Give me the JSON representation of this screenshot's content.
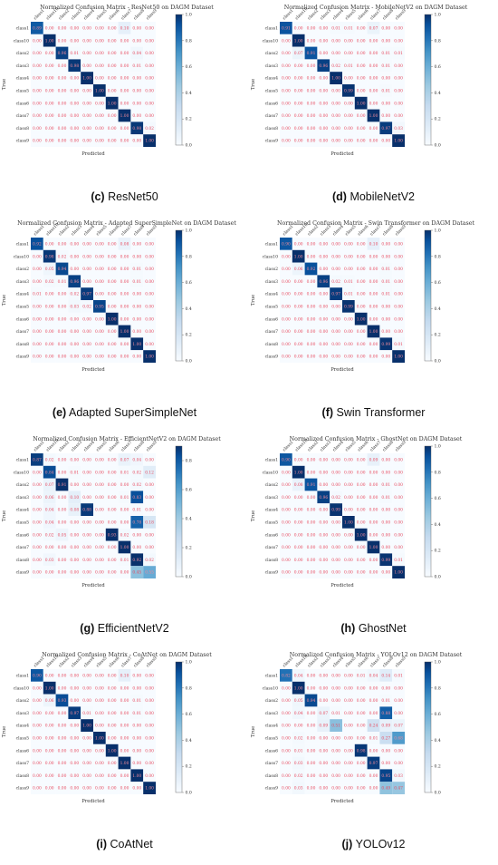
{
  "figure": {
    "class_labels": [
      "class1",
      "class10",
      "class2",
      "class3",
      "class4",
      "class5",
      "class6",
      "class7",
      "class8",
      "class9"
    ],
    "axis_true": "True",
    "axis_pred": "Predicted",
    "cbar_ticks": [
      "0.0",
      "0.2",
      "0.4",
      "0.6",
      "0.8",
      "1.0"
    ],
    "colors": {
      "low": "#f7fbff",
      "high": "#08306b",
      "text_light": "#e84a5f",
      "text_dark": "#f08a9a"
    }
  },
  "panels": [
    {
      "letter": "(c)",
      "caption": "ResNet50"
    },
    {
      "letter": "(d)",
      "caption": "MobileNetV2"
    },
    {
      "letter": "(e)",
      "caption": "Adapted SuperSimpleNet"
    },
    {
      "letter": "(f)",
      "caption": "Swin Transformer"
    },
    {
      "letter": "(g)",
      "caption": "EfficientNetV2"
    },
    {
      "letter": "(h)",
      "caption": "GhostNet"
    },
    {
      "letter": "(i)",
      "caption": "CoAtNet"
    },
    {
      "letter": "(j)",
      "caption": "YOLOv12"
    }
  ],
  "chart_data": [
    {
      "type": "heatmap",
      "title": "Normalized Confusion Matrix - ResNet50 on DAGM Dataset",
      "xlabel": "Predicted",
      "ylabel": "True",
      "vrange": [
        0,
        1.0
      ],
      "matrix": [
        [
          0.89,
          0.0,
          0.0,
          0.0,
          0.0,
          0.0,
          0.0,
          0.1,
          0.0,
          0.0
        ],
        [
          0.0,
          1.0,
          0.0,
          0.0,
          0.0,
          0.0,
          0.0,
          0.0,
          0.0,
          0.0
        ],
        [
          0.0,
          0.0,
          0.96,
          0.01,
          0.0,
          0.0,
          0.0,
          0.0,
          0.04,
          0.0
        ],
        [
          0.0,
          0.0,
          0.0,
          0.98,
          0.0,
          0.0,
          0.0,
          0.0,
          0.01,
          0.0
        ],
        [
          0.0,
          0.0,
          0.0,
          0.0,
          1.0,
          0.0,
          0.0,
          0.0,
          0.0,
          0.0
        ],
        [
          0.0,
          0.0,
          0.0,
          0.0,
          0.0,
          1.0,
          0.0,
          0.0,
          0.0,
          0.0
        ],
        [
          0.0,
          0.0,
          0.0,
          0.0,
          0.0,
          0.0,
          1.0,
          0.0,
          0.0,
          0.0
        ],
        [
          0.0,
          0.0,
          0.0,
          0.0,
          0.0,
          0.0,
          0.0,
          1.0,
          0.0,
          0.0
        ],
        [
          0.0,
          0.0,
          0.0,
          0.0,
          0.0,
          0.0,
          0.0,
          0.0,
          0.98,
          0.02
        ],
        [
          0.0,
          0.0,
          0.0,
          0.0,
          0.0,
          0.0,
          0.0,
          0.0,
          0.0,
          1.0
        ]
      ]
    },
    {
      "type": "heatmap",
      "title": "Normalized Confusion Matrix - MobileNetV2 on DAGM Dataset",
      "xlabel": "Predicted",
      "ylabel": "True",
      "vrange": [
        0,
        1.0
      ],
      "matrix": [
        [
          0.91,
          0.0,
          0.0,
          0.0,
          0.01,
          0.01,
          0.0,
          0.07,
          0.0,
          0.0
        ],
        [
          0.0,
          1.0,
          0.0,
          0.0,
          0.0,
          0.0,
          0.0,
          0.0,
          0.0,
          0.0
        ],
        [
          0.0,
          0.07,
          0.91,
          0.0,
          0.0,
          0.0,
          0.0,
          0.0,
          0.01,
          0.01
        ],
        [
          0.0,
          0.0,
          0.0,
          0.96,
          0.02,
          0.01,
          0.0,
          0.0,
          0.01,
          0.0
        ],
        [
          0.0,
          0.0,
          0.0,
          0.0,
          1.0,
          0.0,
          0.0,
          0.0,
          0.0,
          0.0
        ],
        [
          0.0,
          0.0,
          0.0,
          0.0,
          0.0,
          0.99,
          0.0,
          0.0,
          0.01,
          0.0
        ],
        [
          0.0,
          0.0,
          0.0,
          0.0,
          0.0,
          0.0,
          1.0,
          0.0,
          0.0,
          0.0
        ],
        [
          0.0,
          0.0,
          0.0,
          0.0,
          0.0,
          0.0,
          0.0,
          1.0,
          0.0,
          0.0
        ],
        [
          0.0,
          0.0,
          0.0,
          0.0,
          0.0,
          0.0,
          0.0,
          0.0,
          0.97,
          0.03
        ],
        [
          0.0,
          0.0,
          0.0,
          0.0,
          0.0,
          0.0,
          0.0,
          0.0,
          0.0,
          1.0
        ]
      ]
    },
    {
      "type": "heatmap",
      "title": "Normalized Confusion Matrix - Adapted SuperSimpleNet on DAGM Dataset",
      "xlabel": "Predicted",
      "ylabel": "True",
      "vrange": [
        0,
        1.0
      ],
      "matrix": [
        [
          0.92,
          0.0,
          0.0,
          0.0,
          0.0,
          0.0,
          0.0,
          0.08,
          0.0,
          0.0
        ],
        [
          0.0,
          0.98,
          0.02,
          0.0,
          0.0,
          0.0,
          0.0,
          0.0,
          0.0,
          0.0
        ],
        [
          0.0,
          0.05,
          0.94,
          0.0,
          0.0,
          0.0,
          0.0,
          0.0,
          0.01,
          0.0
        ],
        [
          0.0,
          0.02,
          0.01,
          0.96,
          0.0,
          0.0,
          0.0,
          0.0,
          0.01,
          0.0
        ],
        [
          0.01,
          0.0,
          0.0,
          0.02,
          0.97,
          0.0,
          0.0,
          0.0,
          0.0,
          0.0
        ],
        [
          0.0,
          0.0,
          0.0,
          0.03,
          0.02,
          0.95,
          0.0,
          0.0,
          0.0,
          0.0
        ],
        [
          0.0,
          0.0,
          0.0,
          0.0,
          0.0,
          0.0,
          1.0,
          0.0,
          0.0,
          0.0
        ],
        [
          0.0,
          0.0,
          0.0,
          0.0,
          0.0,
          0.0,
          0.0,
          1.0,
          0.0,
          0.0
        ],
        [
          0.0,
          0.0,
          0.0,
          0.0,
          0.0,
          0.0,
          0.0,
          0.0,
          1.0,
          0.0
        ],
        [
          0.0,
          0.0,
          0.0,
          0.0,
          0.0,
          0.0,
          0.0,
          0.0,
          0.0,
          1.0
        ]
      ]
    },
    {
      "type": "heatmap",
      "title": "Normalized Confusion Matrix - Swin Transformer on DAGM Dataset",
      "xlabel": "Predicted",
      "ylabel": "True",
      "vrange": [
        0,
        1.0
      ],
      "matrix": [
        [
          0.9,
          0.0,
          0.0,
          0.0,
          0.0,
          0.0,
          0.0,
          0.1,
          0.0,
          0.0
        ],
        [
          0.0,
          1.0,
          0.0,
          0.0,
          0.0,
          0.0,
          0.0,
          0.0,
          0.0,
          0.0
        ],
        [
          0.0,
          0.06,
          0.92,
          0.0,
          0.0,
          0.0,
          0.0,
          0.0,
          0.01,
          0.0
        ],
        [
          0.0,
          0.0,
          0.0,
          0.96,
          0.02,
          0.01,
          0.0,
          0.0,
          0.01,
          0.0
        ],
        [
          0.0,
          0.0,
          0.0,
          0.0,
          0.97,
          0.01,
          0.0,
          0.0,
          0.01,
          0.0
        ],
        [
          0.0,
          0.0,
          0.0,
          0.0,
          0.0,
          0.99,
          0.0,
          0.0,
          0.0,
          0.0
        ],
        [
          0.0,
          0.0,
          0.0,
          0.0,
          0.0,
          0.0,
          1.0,
          0.0,
          0.0,
          0.0
        ],
        [
          0.0,
          0.0,
          0.0,
          0.0,
          0.0,
          0.0,
          0.0,
          1.0,
          0.0,
          0.0
        ],
        [
          0.0,
          0.0,
          0.0,
          0.0,
          0.0,
          0.0,
          0.0,
          0.0,
          0.99,
          0.01
        ],
        [
          0.0,
          0.0,
          0.0,
          0.0,
          0.0,
          0.0,
          0.0,
          0.0,
          0.0,
          1.0
        ]
      ]
    },
    {
      "type": "heatmap",
      "title": "Normalized Confusion Matrix - EfficientNetV2 on DAGM Dataset",
      "xlabel": "Predicted",
      "ylabel": "True",
      "vrange": [
        0,
        0.9
      ],
      "matrix": [
        [
          0.87,
          0.02,
          0.0,
          0.0,
          0.0,
          0.0,
          0.0,
          0.07,
          0.04,
          0.0
        ],
        [
          0.0,
          0.84,
          0.0,
          0.01,
          0.0,
          0.0,
          0.0,
          0.01,
          0.02,
          0.12
        ],
        [
          0.0,
          0.07,
          0.91,
          0.0,
          0.0,
          0.0,
          0.0,
          0.0,
          0.02,
          0.0
        ],
        [
          0.0,
          0.06,
          0.0,
          0.1,
          0.0,
          0.0,
          0.0,
          0.01,
          0.83,
          0.0
        ],
        [
          0.0,
          0.04,
          0.0,
          0.08,
          0.88,
          0.0,
          0.0,
          0.0,
          0.01,
          0.0
        ],
        [
          0.0,
          0.04,
          0.0,
          0.0,
          0.0,
          0.0,
          0.0,
          0.0,
          0.78,
          0.18
        ],
        [
          0.0,
          0.02,
          0.05,
          0.0,
          0.0,
          0.0,
          0.93,
          0.02,
          0.0,
          0.0
        ],
        [
          0.0,
          0.0,
          0.0,
          0.0,
          0.0,
          0.0,
          0.0,
          1.0,
          0.0,
          0.0
        ],
        [
          0.0,
          0.03,
          0.0,
          0.0,
          0.0,
          0.0,
          0.0,
          0.01,
          0.92,
          0.02
        ],
        [
          0.0,
          0.0,
          0.0,
          0.0,
          0.0,
          0.0,
          0.0,
          0.0,
          0.45,
          0.55
        ]
      ]
    },
    {
      "type": "heatmap",
      "title": "Normalized Confusion Matrix - GhostNet on DAGM Dataset",
      "xlabel": "Predicted",
      "ylabel": "True",
      "vrange": [
        0,
        1.0
      ],
      "matrix": [
        [
          0.9,
          0.0,
          0.0,
          0.0,
          0.0,
          0.0,
          0.0,
          0.09,
          0.0,
          0.0
        ],
        [
          0.0,
          1.0,
          0.0,
          0.0,
          0.0,
          0.0,
          0.0,
          0.0,
          0.0,
          0.0
        ],
        [
          0.0,
          0.08,
          0.91,
          0.0,
          0.0,
          0.0,
          0.0,
          0.0,
          0.01,
          0.0
        ],
        [
          0.0,
          0.0,
          0.0,
          0.96,
          0.02,
          0.0,
          0.0,
          0.0,
          0.01,
          0.0
        ],
        [
          0.0,
          0.0,
          0.0,
          0.0,
          0.99,
          0.0,
          0.0,
          0.0,
          0.0,
          0.0
        ],
        [
          0.0,
          0.0,
          0.0,
          0.0,
          0.0,
          1.0,
          0.0,
          0.0,
          0.0,
          0.0
        ],
        [
          0.0,
          0.0,
          0.0,
          0.0,
          0.0,
          0.0,
          1.0,
          0.0,
          0.0,
          0.0
        ],
        [
          0.0,
          0.0,
          0.0,
          0.0,
          0.0,
          0.0,
          0.0,
          1.0,
          0.0,
          0.0
        ],
        [
          0.0,
          0.0,
          0.0,
          0.0,
          0.0,
          0.0,
          0.0,
          0.0,
          0.99,
          0.01
        ],
        [
          0.0,
          0.0,
          0.0,
          0.0,
          0.0,
          0.0,
          0.0,
          0.0,
          0.0,
          1.0
        ]
      ]
    },
    {
      "type": "heatmap",
      "title": "Normalized Confusion Matrix - CoAtNet on DAGM Dataset",
      "xlabel": "Predicted",
      "ylabel": "True",
      "vrange": [
        0,
        1.0
      ],
      "matrix": [
        [
          0.9,
          0.0,
          0.0,
          0.0,
          0.0,
          0.0,
          0.0,
          0.1,
          0.0,
          0.0
        ],
        [
          0.0,
          1.0,
          0.0,
          0.0,
          0.0,
          0.0,
          0.0,
          0.0,
          0.0,
          0.0
        ],
        [
          0.0,
          0.06,
          0.93,
          0.0,
          0.0,
          0.0,
          0.0,
          0.0,
          0.01,
          0.0
        ],
        [
          0.0,
          0.0,
          0.0,
          0.97,
          0.01,
          0.0,
          0.0,
          0.0,
          0.01,
          0.0
        ],
        [
          0.0,
          0.0,
          0.0,
          0.0,
          1.0,
          0.0,
          0.0,
          0.0,
          0.0,
          0.0
        ],
        [
          0.0,
          0.0,
          0.0,
          0.0,
          0.0,
          1.0,
          0.0,
          0.0,
          0.0,
          0.0
        ],
        [
          0.0,
          0.0,
          0.0,
          0.0,
          0.0,
          0.0,
          1.0,
          0.0,
          0.0,
          0.0
        ],
        [
          0.0,
          0.0,
          0.0,
          0.0,
          0.0,
          0.0,
          0.0,
          1.0,
          0.0,
          0.0
        ],
        [
          0.0,
          0.0,
          0.0,
          0.0,
          0.0,
          0.0,
          0.0,
          0.0,
          1.0,
          0.0
        ],
        [
          0.0,
          0.0,
          0.0,
          0.0,
          0.0,
          0.0,
          0.0,
          0.0,
          0.0,
          1.0
        ]
      ]
    },
    {
      "type": "heatmap",
      "title": "Normalized Confusion Matrix - YOLOv12 on DAGM Dataset",
      "xlabel": "Predicted",
      "ylabel": "True",
      "vrange": [
        0,
        1.0
      ],
      "matrix": [
        [
          0.82,
          0.04,
          0.0,
          0.0,
          0.0,
          0.0,
          0.01,
          0.04,
          0.14,
          0.01
        ],
        [
          0.0,
          1.0,
          0.0,
          0.0,
          0.0,
          0.0,
          0.0,
          0.0,
          0.0,
          0.0
        ],
        [
          0.0,
          0.05,
          0.94,
          0.0,
          0.0,
          0.0,
          0.0,
          0.0,
          0.01,
          0.0
        ],
        [
          0.0,
          0.04,
          0.0,
          0.07,
          0.01,
          0.0,
          0.0,
          0.0,
          0.88,
          0.0
        ],
        [
          0.0,
          0.0,
          0.0,
          0.09,
          0.51,
          0.0,
          0.0,
          0.24,
          0.09,
          0.07
        ],
        [
          0.0,
          0.02,
          0.0,
          0.0,
          0.0,
          0.0,
          0.0,
          0.01,
          0.27,
          0.68
        ],
        [
          0.0,
          0.01,
          0.0,
          0.0,
          0.0,
          0.0,
          0.98,
          0.0,
          0.0,
          0.0
        ],
        [
          0.0,
          0.03,
          0.0,
          0.0,
          0.0,
          0.0,
          0.0,
          0.97,
          0.0,
          0.0
        ],
        [
          0.0,
          0.02,
          0.0,
          0.0,
          0.0,
          0.0,
          0.0,
          0.0,
          0.95,
          0.03
        ],
        [
          0.0,
          0.03,
          0.0,
          0.0,
          0.0,
          0.0,
          0.0,
          0.0,
          0.49,
          0.47
        ]
      ]
    }
  ]
}
